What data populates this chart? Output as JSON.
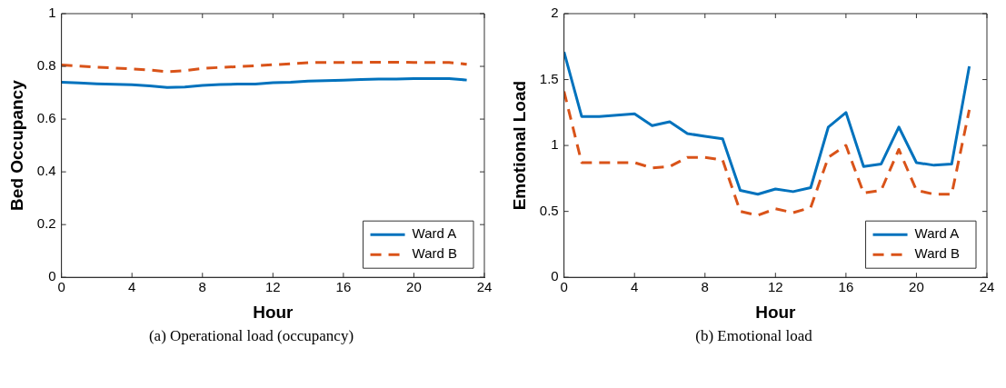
{
  "chart_data": [
    {
      "type": "line",
      "xlabel": "Hour",
      "ylabel": "Bed Occupancy",
      "x": [
        0,
        1,
        2,
        3,
        4,
        5,
        6,
        7,
        8,
        9,
        10,
        11,
        12,
        13,
        14,
        15,
        16,
        17,
        18,
        19,
        20,
        21,
        22,
        23
      ],
      "series": [
        {
          "name": "Ward A",
          "color": "#0072bd",
          "line_style": "solid",
          "values": [
            0.74,
            0.737,
            0.734,
            0.732,
            0.73,
            0.726,
            0.72,
            0.722,
            0.728,
            0.731,
            0.733,
            0.733,
            0.738,
            0.74,
            0.744,
            0.746,
            0.748,
            0.75,
            0.752,
            0.752,
            0.754,
            0.754,
            0.754,
            0.748
          ]
        },
        {
          "name": "Ward B",
          "color": "#d95319",
          "line_style": "dashed",
          "values": [
            0.805,
            0.801,
            0.797,
            0.794,
            0.79,
            0.786,
            0.78,
            0.784,
            0.792,
            0.796,
            0.799,
            0.802,
            0.806,
            0.81,
            0.814,
            0.815,
            0.815,
            0.815,
            0.816,
            0.816,
            0.815,
            0.815,
            0.815,
            0.808
          ]
        }
      ],
      "xlim": [
        0,
        24
      ],
      "xticks": [
        0,
        4,
        8,
        12,
        16,
        20,
        24
      ],
      "ylim": [
        0,
        1
      ],
      "yticks": [
        0,
        0.2,
        0.4,
        0.6,
        0.8,
        1
      ],
      "grid": false,
      "legend": "bottom right",
      "marker": "none",
      "annotations": [
        "(a)  Operational load (occupancy)"
      ]
    },
    {
      "type": "line",
      "xlabel": "Hour",
      "ylabel": "Emotional Load",
      "x": [
        0,
        1,
        2,
        3,
        4,
        5,
        6,
        7,
        8,
        9,
        10,
        11,
        12,
        13,
        14,
        15,
        16,
        17,
        18,
        19,
        20,
        21,
        22,
        23
      ],
      "series": [
        {
          "name": "Ward A",
          "color": "#0072bd",
          "line_style": "solid",
          "values": [
            1.71,
            1.22,
            1.22,
            1.23,
            1.24,
            1.15,
            1.18,
            1.09,
            1.07,
            1.05,
            0.66,
            0.63,
            0.67,
            0.65,
            0.68,
            1.14,
            1.25,
            0.84,
            0.86,
            1.14,
            0.87,
            0.85,
            0.86,
            1.6
          ]
        },
        {
          "name": "Ward B",
          "color": "#d95319",
          "line_style": "dashed",
          "values": [
            1.41,
            0.87,
            0.87,
            0.87,
            0.87,
            0.83,
            0.84,
            0.91,
            0.91,
            0.89,
            0.5,
            0.47,
            0.52,
            0.49,
            0.53,
            0.91,
            1.0,
            0.64,
            0.66,
            0.97,
            0.66,
            0.63,
            0.63,
            1.27
          ]
        }
      ],
      "xlim": [
        0,
        24
      ],
      "xticks": [
        0,
        4,
        8,
        12,
        16,
        20,
        24
      ],
      "ylim": [
        0,
        2
      ],
      "yticks": [
        0,
        0.5,
        1,
        1.5,
        2
      ],
      "grid": false,
      "legend": "bottom right",
      "marker": "none",
      "annotations": [
        "(b)  Emotional load"
      ]
    }
  ]
}
